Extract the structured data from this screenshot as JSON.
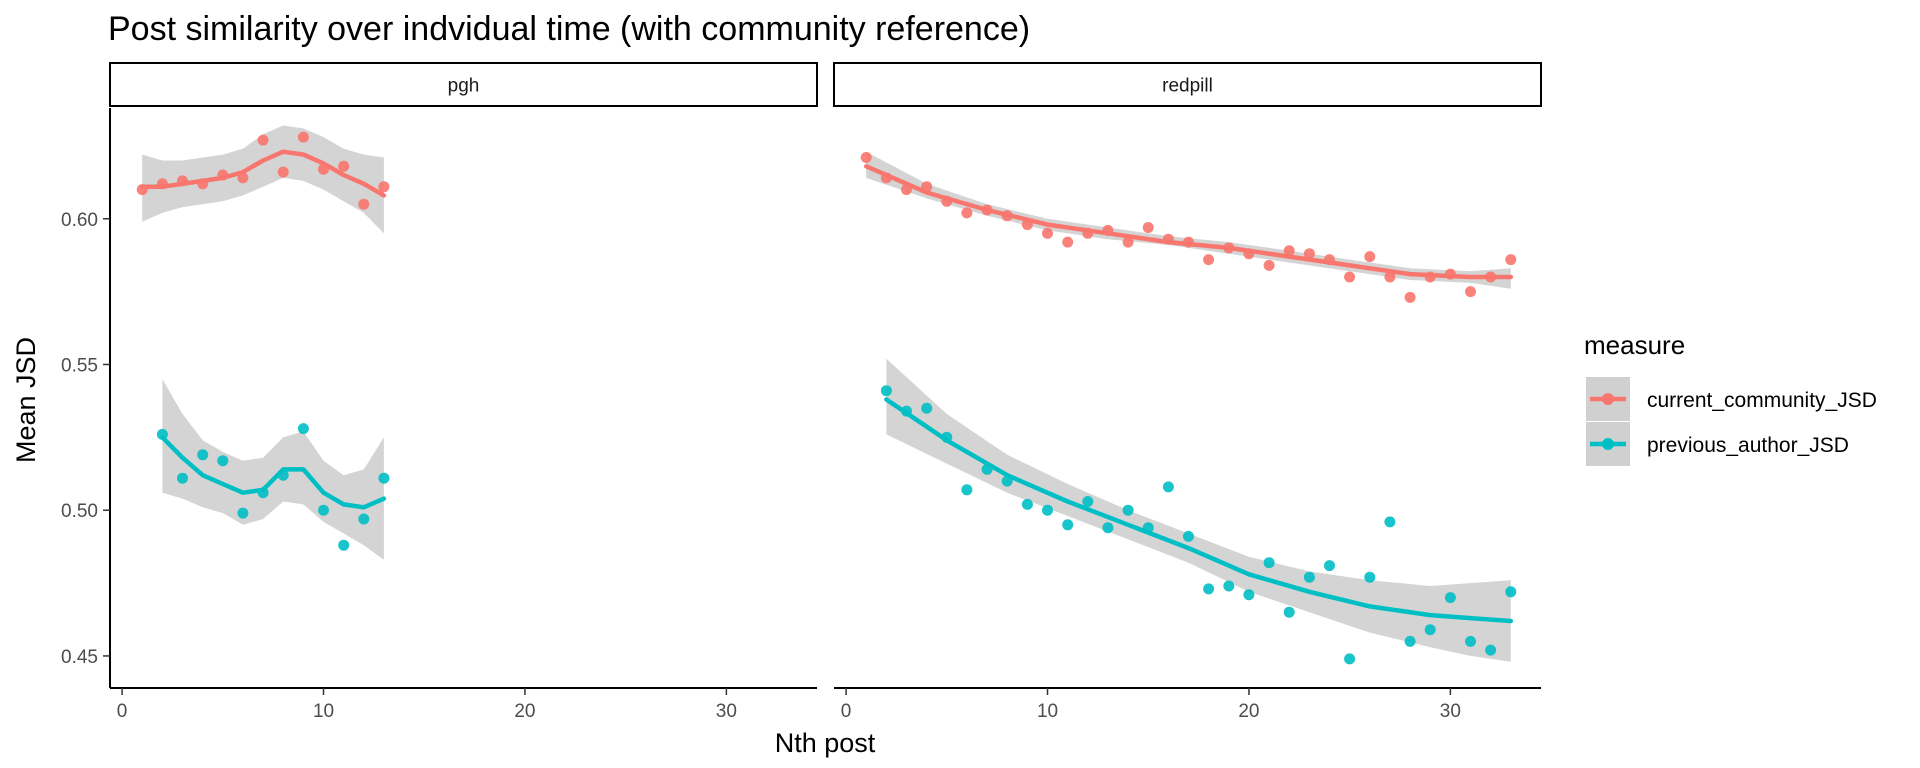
{
  "chart_data": {
    "type": "scatter",
    "title": "Post similarity over indvidual time (with community reference)",
    "xlabel": "Nth post",
    "ylabel": "Mean JSD",
    "xlim": [
      -0.6,
      34.5
    ],
    "ylim": [
      0.439,
      0.638
    ],
    "x_ticks": [
      0,
      10,
      20,
      30
    ],
    "y_ticks": [
      0.45,
      0.5,
      0.55,
      0.6
    ],
    "y_tick_labels": [
      "0.45",
      "0.50",
      "0.55",
      "0.60"
    ],
    "grid": false,
    "legend": {
      "title": "measure",
      "placement": "right",
      "entries": [
        {
          "name": "current_community_JSD",
          "color": "#F8766D"
        },
        {
          "name": "previous_author_JSD",
          "color": "#00BFC4"
        }
      ]
    },
    "smooth_fill_color": "#cccccc",
    "panels": [
      {
        "label": "pgh",
        "series": [
          {
            "name": "current_community_JSD",
            "color": "#F8766D",
            "x": [
              1,
              2,
              3,
              4,
              5,
              6,
              7,
              8,
              9,
              10,
              11,
              12,
              13
            ],
            "y": [
              0.61,
              0.612,
              0.613,
              0.612,
              0.615,
              0.614,
              0.627,
              0.616,
              0.628,
              0.617,
              0.618,
              0.605,
              0.611
            ],
            "smooth_x": [
              1,
              2,
              3,
              4,
              5,
              6,
              7,
              8,
              9,
              10,
              11,
              12,
              13
            ],
            "smooth_y": [
              0.611,
              0.611,
              0.612,
              0.613,
              0.614,
              0.616,
              0.62,
              0.623,
              0.622,
              0.619,
              0.615,
              0.612,
              0.608
            ],
            "band_lo": [
              0.599,
              0.602,
              0.604,
              0.605,
              0.606,
              0.608,
              0.611,
              0.614,
              0.613,
              0.61,
              0.606,
              0.602,
              0.595
            ],
            "band_hi": [
              0.622,
              0.62,
              0.62,
              0.621,
              0.622,
              0.624,
              0.629,
              0.632,
              0.631,
              0.628,
              0.624,
              0.622,
              0.621
            ]
          },
          {
            "name": "previous_author_JSD",
            "color": "#00BFC4",
            "x": [
              2,
              3,
              4,
              5,
              6,
              7,
              8,
              9,
              10,
              11,
              12,
              13
            ],
            "y": [
              0.526,
              0.511,
              0.519,
              0.517,
              0.499,
              0.506,
              0.512,
              0.528,
              0.5,
              0.488,
              0.497,
              0.511
            ],
            "smooth_x": [
              2,
              3,
              4,
              5,
              6,
              7,
              8,
              9,
              10,
              11,
              12,
              13
            ],
            "smooth_y": [
              0.525,
              0.518,
              0.512,
              0.509,
              0.506,
              0.507,
              0.514,
              0.514,
              0.506,
              0.502,
              0.501,
              0.504
            ],
            "band_lo": [
              0.506,
              0.504,
              0.501,
              0.499,
              0.495,
              0.497,
              0.503,
              0.502,
              0.496,
              0.492,
              0.488,
              0.483
            ],
            "band_hi": [
              0.545,
              0.533,
              0.524,
              0.52,
              0.517,
              0.518,
              0.525,
              0.527,
              0.517,
              0.512,
              0.514,
              0.525
            ]
          }
        ]
      },
      {
        "label": "redpill",
        "series": [
          {
            "name": "current_community_JSD",
            "color": "#F8766D",
            "x": [
              1,
              2,
              3,
              4,
              5,
              6,
              7,
              8,
              9,
              10,
              11,
              12,
              13,
              14,
              15,
              16,
              17,
              18,
              19,
              20,
              21,
              22,
              23,
              24,
              25,
              26,
              27,
              28,
              29,
              30,
              31,
              32,
              33
            ],
            "y": [
              0.621,
              0.614,
              0.61,
              0.611,
              0.606,
              0.602,
              0.603,
              0.601,
              0.598,
              0.595,
              0.592,
              0.595,
              0.596,
              0.592,
              0.597,
              0.593,
              0.592,
              0.586,
              0.59,
              0.588,
              0.584,
              0.589,
              0.588,
              0.586,
              0.58,
              0.587,
              0.58,
              0.573,
              0.58,
              0.581,
              0.575,
              0.58,
              0.586
            ],
            "smooth_x": [
              1,
              4,
              7,
              10,
              13,
              16,
              19,
              22,
              25,
              28,
              31,
              33
            ],
            "smooth_y": [
              0.618,
              0.609,
              0.603,
              0.598,
              0.595,
              0.592,
              0.59,
              0.587,
              0.584,
              0.581,
              0.58,
              0.58
            ],
            "band_lo": [
              0.614,
              0.607,
              0.601,
              0.596,
              0.593,
              0.591,
              0.588,
              0.585,
              0.582,
              0.579,
              0.578,
              0.576
            ],
            "band_hi": [
              0.623,
              0.612,
              0.605,
              0.6,
              0.597,
              0.594,
              0.592,
              0.589,
              0.586,
              0.583,
              0.582,
              0.583
            ]
          },
          {
            "name": "previous_author_JSD",
            "color": "#00BFC4",
            "x": [
              2,
              3,
              4,
              5,
              6,
              7,
              8,
              9,
              10,
              11,
              12,
              13,
              14,
              15,
              16,
              17,
              18,
              19,
              20,
              21,
              22,
              23,
              24,
              25,
              26,
              27,
              28,
              29,
              30,
              31,
              32,
              33
            ],
            "y": [
              0.541,
              0.534,
              0.535,
              0.525,
              0.507,
              0.514,
              0.51,
              0.502,
              0.5,
              0.495,
              0.503,
              0.494,
              0.5,
              0.494,
              0.508,
              0.491,
              0.473,
              0.474,
              0.471,
              0.482,
              0.465,
              0.477,
              0.481,
              0.449,
              0.477,
              0.496,
              0.455,
              0.459,
              0.47,
              0.455,
              0.452,
              0.472
            ],
            "smooth_x": [
              2,
              5,
              8,
              11,
              14,
              17,
              20,
              23,
              26,
              29,
              31,
              33
            ],
            "smooth_y": [
              0.538,
              0.524,
              0.512,
              0.503,
              0.495,
              0.487,
              0.478,
              0.472,
              0.467,
              0.464,
              0.463,
              0.462
            ],
            "band_lo": [
              0.526,
              0.516,
              0.506,
              0.498,
              0.49,
              0.482,
              0.472,
              0.465,
              0.458,
              0.453,
              0.45,
              0.448
            ],
            "band_hi": [
              0.552,
              0.533,
              0.519,
              0.509,
              0.5,
              0.492,
              0.484,
              0.479,
              0.476,
              0.474,
              0.475,
              0.476
            ]
          }
        ]
      }
    ]
  }
}
